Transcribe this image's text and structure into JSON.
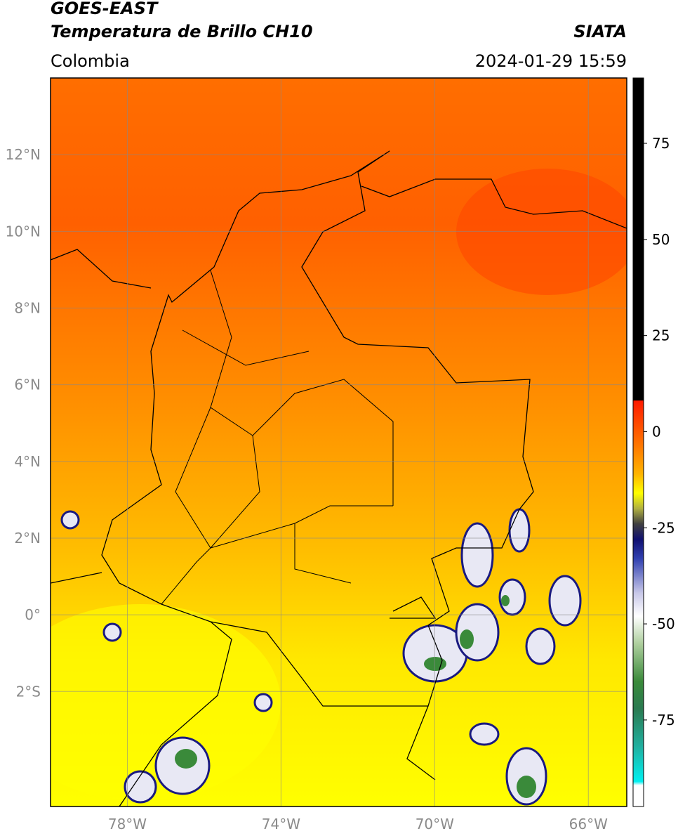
{
  "header": {
    "satellite": "GOES-EAST",
    "product": "Temperatura de Brillo CH10",
    "source": "SIATA",
    "region": "Colombia",
    "datetime": "2024-01-29 15:59"
  },
  "chart_data": {
    "type": "map",
    "xlim": [
      -80,
      -65
    ],
    "ylim": [
      -5,
      14
    ],
    "xticks": [
      {
        "value": -78,
        "label": "78°W"
      },
      {
        "value": -74,
        "label": "74°W"
      },
      {
        "value": -70,
        "label": "70°W"
      },
      {
        "value": -66,
        "label": "66°W"
      }
    ],
    "yticks": [
      {
        "value": 12,
        "label": "12°N"
      },
      {
        "value": 10,
        "label": "10°N"
      },
      {
        "value": 8,
        "label": "8°N"
      },
      {
        "value": 6,
        "label": "6°N"
      },
      {
        "value": 4,
        "label": "4°N"
      },
      {
        "value": 2,
        "label": "2°N"
      },
      {
        "value": 0,
        "label": "0°"
      },
      {
        "value": -2,
        "label": "2°S"
      }
    ],
    "grid": true,
    "colorbar": {
      "lim": [
        -97.5,
        92
      ],
      "ticks": [
        75,
        50,
        25,
        0,
        -25,
        -50,
        -75
      ],
      "colormap": [
        {
          "value": 92,
          "color": "#000000"
        },
        {
          "value": 8.2,
          "color": "#000000"
        },
        {
          "value": 8,
          "color": "#ff1a00"
        },
        {
          "value": -2,
          "color": "#ff6a00"
        },
        {
          "value": -11,
          "color": "#ffb400"
        },
        {
          "value": -16,
          "color": "#ffff00"
        },
        {
          "value": -20,
          "color": "#b0b040"
        },
        {
          "value": -24,
          "color": "#404040"
        },
        {
          "value": -28,
          "color": "#101070"
        },
        {
          "value": -33,
          "color": "#3040b0"
        },
        {
          "value": -42,
          "color": "#c8c8e8"
        },
        {
          "value": -48,
          "color": "#ffffff"
        },
        {
          "value": -55,
          "color": "#b0d0a0"
        },
        {
          "value": -65,
          "color": "#3a8a3a"
        },
        {
          "value": -72,
          "color": "#2a7a50"
        },
        {
          "value": -82,
          "color": "#20b0a0"
        },
        {
          "value": -91,
          "color": "#00f0f0"
        },
        {
          "value": -92,
          "color": "#ffffff"
        },
        {
          "value": -97.5,
          "color": "#ffffff"
        }
      ]
    }
  }
}
